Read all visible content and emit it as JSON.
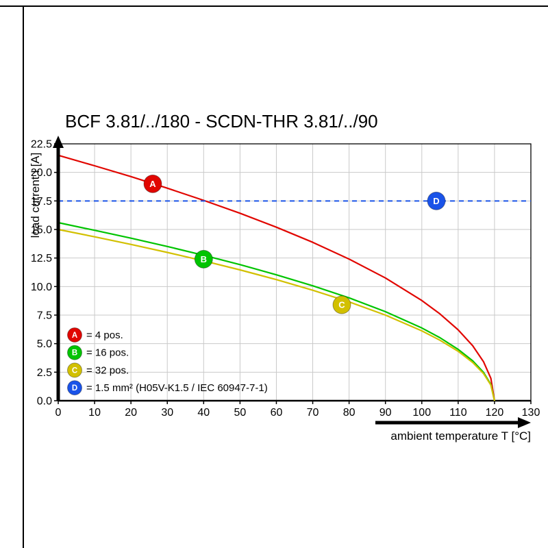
{
  "chart_data": {
    "type": "line",
    "title": "BCF 3.81/../180 - SCDN-THR 3.81/../90",
    "xlabel": "ambient temperature T [°C]",
    "ylabel": "load current I [A]",
    "xlim": [
      0,
      130
    ],
    "ylim": [
      0,
      22.5
    ],
    "grid": true,
    "legend_position": "lower left",
    "x_tick_labels": [
      "0",
      "10",
      "20",
      "30",
      "40",
      "50",
      "60",
      "70",
      "80",
      "90",
      "100",
      "110",
      "120",
      "130"
    ],
    "y_tick_labels": [
      "0.0",
      "2.5",
      "5.0",
      "7.5",
      "10.0",
      "12.5",
      "15.0",
      "17.5",
      "20.0",
      "22.5"
    ],
    "x": [
      0,
      10,
      20,
      30,
      40,
      50,
      60,
      70,
      80,
      90,
      100,
      105,
      110,
      114,
      117,
      119,
      120
    ],
    "series": [
      {
        "name": "A",
        "type": "curve",
        "label": "= 4 pos.",
        "color": "#e10600",
        "values": [
          21.5,
          20.58,
          19.63,
          18.62,
          17.55,
          16.42,
          15.2,
          13.88,
          12.41,
          10.75,
          8.78,
          7.6,
          6.21,
          4.81,
          3.4,
          1.96,
          0
        ],
        "marker": {
          "x": 26,
          "y": 19.0
        }
      },
      {
        "name": "B",
        "type": "curve",
        "label": "= 16 pos.",
        "color": "#00c400",
        "values": [
          15.6,
          14.93,
          14.24,
          13.51,
          12.74,
          11.92,
          11.03,
          10.07,
          9.01,
          7.8,
          6.37,
          5.52,
          4.5,
          3.49,
          2.47,
          1.42,
          0
        ],
        "marker": {
          "x": 40,
          "y": 12.4
        }
      },
      {
        "name": "C",
        "type": "curve",
        "label": "= 32 pos.",
        "color": "#d2c000",
        "values": [
          15.0,
          14.36,
          13.69,
          12.99,
          12.25,
          11.46,
          10.61,
          9.68,
          8.66,
          7.5,
          6.12,
          5.3,
          4.33,
          3.35,
          2.37,
          1.37,
          0
        ],
        "marker": {
          "x": 78,
          "y": 8.4
        }
      },
      {
        "name": "D",
        "type": "hline",
        "label": "= 1.5 mm² (H05V-K1.5 / IEC 60947-7-1)",
        "color": "#1a53e8",
        "y": 17.5,
        "dash": "7 6",
        "marker": {
          "x": 104,
          "y": 17.5
        }
      }
    ]
  }
}
